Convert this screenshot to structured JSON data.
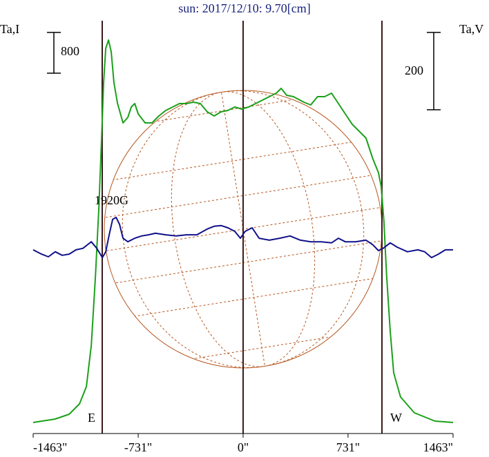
{
  "chart_data": {
    "type": "line",
    "title": "sun: 2017/12/10: 9.70[cm]",
    "y_label": "Ta,I",
    "y2_label": "Ta,V",
    "annotations": {
      "field": "1920G",
      "east": "E",
      "west": "W"
    },
    "y_scale_bar": 800,
    "y2_scale_bar": 200,
    "xlim": [
      -1463,
      1463
    ],
    "xticks": [
      {
        "value": -1463,
        "label": "-1463\""
      },
      {
        "value": -731,
        "label": "-731\""
      },
      {
        "value": 0,
        "label": "0\""
      },
      {
        "value": 731,
        "label": "731\""
      },
      {
        "value": 1463,
        "label": "1463\""
      }
    ],
    "ylim": [
      0,
      8068
    ],
    "y2lim": [
      -470,
      593
    ],
    "series": [
      {
        "color": "#1aa01a",
        "x": [
          -1463,
          -1309,
          -1212,
          -1140,
          -1092,
          -1058,
          -1029,
          -1005,
          -986,
          -972,
          -957,
          -938,
          -919,
          -900,
          -875,
          -837,
          -803,
          -779,
          -755,
          -731,
          -683,
          -635,
          -587,
          -539,
          -491,
          -443,
          -394,
          -346,
          -298,
          -250,
          -202,
          -154,
          -106,
          -58,
          -10,
          38,
          87,
          135,
          183,
          231,
          265,
          303,
          351,
          423,
          471,
          519,
          568,
          616,
          664,
          712,
          760,
          808,
          856,
          904,
          943,
          962,
          981,
          1000,
          1025,
          1049,
          1097,
          1193,
          1337,
          1463
        ],
        "values": [
          176,
          244,
          339,
          542,
          881,
          1695,
          3051,
          4407,
          5763,
          6848,
          7526,
          7689,
          7458,
          6848,
          6441,
          6061,
          6170,
          6373,
          6441,
          6238,
          6061,
          6061,
          6197,
          6305,
          6373,
          6441,
          6441,
          6468,
          6441,
          6278,
          6197,
          6278,
          6305,
          6373,
          6333,
          6373,
          6441,
          6509,
          6577,
          6644,
          6739,
          6604,
          6577,
          6468,
          6414,
          6577,
          6577,
          6644,
          6441,
          6238,
          6034,
          5899,
          5763,
          5356,
          5085,
          4814,
          4136,
          3051,
          1966,
          1153,
          678,
          366,
          203,
          176
        ]
      },
      {
        "color": "#10108a",
        "axis": "y2",
        "x": [
          -1463,
          -1405,
          -1357,
          -1309,
          -1261,
          -1212,
          -1164,
          -1116,
          -1058,
          -1020,
          -981,
          -957,
          -933,
          -909,
          -885,
          -861,
          -837,
          -803,
          -755,
          -707,
          -659,
          -611,
          -539,
          -467,
          -394,
          -322,
          -250,
          -202,
          -154,
          -106,
          -58,
          -19,
          14,
          63,
          111,
          183,
          255,
          327,
          399,
          471,
          544,
          616,
          664,
          712,
          784,
          856,
          904,
          943,
          976,
          1025,
          1073,
          1145,
          1217,
          1265,
          1313,
          1361,
          1409,
          1463
        ],
        "values": [
          0,
          -11,
          -18,
          -5,
          -14,
          -11,
          0,
          4,
          21,
          4,
          -20,
          -5,
          39,
          79,
          84,
          66,
          30,
          21,
          30,
          36,
          39,
          43,
          39,
          36,
          39,
          39,
          54,
          61,
          63,
          57,
          48,
          30,
          48,
          57,
          30,
          25,
          30,
          36,
          25,
          21,
          21,
          18,
          30,
          21,
          21,
          25,
          13,
          -2,
          4,
          18,
          7,
          -5,
          0,
          -5,
          -20,
          -11,
          0,
          0
        ]
      }
    ]
  }
}
